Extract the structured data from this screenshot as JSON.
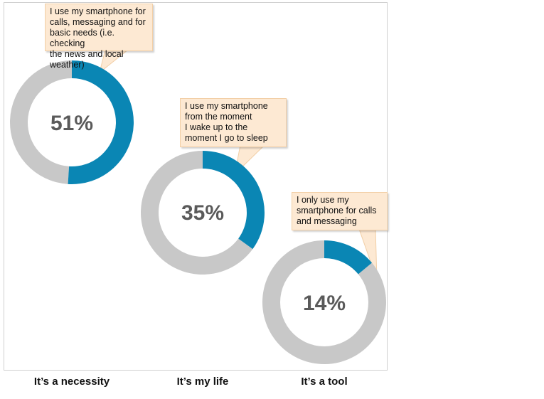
{
  "chart_data": {
    "type": "donut",
    "title": "",
    "categories": [
      "It’s a necessity",
      "It’s my life",
      "It’s a tool"
    ],
    "values": [
      51,
      35,
      14
    ],
    "value_labels": [
      "51%",
      "35%",
      "14%"
    ],
    "annotations": [
      "I use my smartphone for\ncalls, messaging and for\nbasic needs (i.e. checking\nthe news and local weather)",
      "I use my smartphone\nfrom the moment\nI wake up to the\nmoment I go to sleep",
      " I only use my\nsmartphone for calls\nand messaging"
    ],
    "colors": {
      "value": "#0a86b4",
      "remainder": "#c8c8c8",
      "callout_bg": "#fde9d3"
    }
  }
}
